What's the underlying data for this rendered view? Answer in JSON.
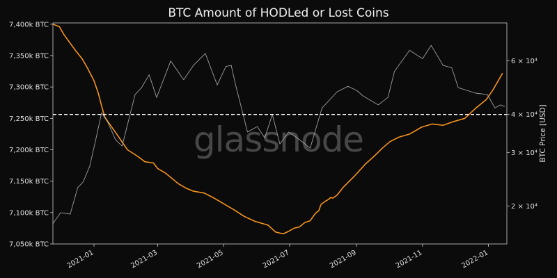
{
  "chart_data": {
    "type": "line",
    "title": "BTC Amount of HODLed or Lost Coins",
    "watermark": "glassnode",
    "x_tick_labels": [
      "2021-01",
      "2021-03",
      "2021-05",
      "2021-07",
      "2021-09",
      "2021-11",
      "2022-01"
    ],
    "xlim": [
      "2020-11-24",
      "2022-01-18"
    ],
    "left_axis": {
      "label": "",
      "tick_labels": [
        "7,400k BTC",
        "7,350k BTC",
        "7,300k BTC",
        "7,250k BTC",
        "7,200k BTC",
        "7,150k BTC",
        "7,100k BTC",
        "7,050k BTC"
      ],
      "tick_values": [
        7400,
        7350,
        7300,
        7250,
        7200,
        7150,
        7100,
        7050
      ],
      "ylim": [
        7050,
        7402
      ]
    },
    "right_axis": {
      "label": "BTC Price [USD]",
      "scale": "log",
      "ticks": [
        {
          "value": 20000,
          "label": "2 × 10⁴"
        },
        {
          "value": 30000,
          "label": "3 × 10⁴"
        },
        {
          "value": 40000,
          "label": "4 × 10⁴"
        },
        {
          "value": 60000,
          "label": "6 × 10⁴"
        }
      ],
      "ylim": [
        15000,
        80000
      ]
    },
    "reference_line": {
      "axis": "right",
      "value": 40000,
      "style": "dashed",
      "color": "#ffffff"
    },
    "grid": false,
    "series": [
      {
        "axis": "left",
        "color": "#f7931a",
        "x": [
          "2020-11-24",
          "2020-11-30",
          "2020-12-04",
          "2020-12-09",
          "2020-12-15",
          "2020-12-21",
          "2020-12-26",
          "2021-01-01",
          "2021-01-05",
          "2021-01-08",
          "2021-01-11",
          "2021-01-15",
          "2021-01-22",
          "2021-02-01",
          "2021-02-10",
          "2021-02-17",
          "2021-02-25",
          "2021-03-01",
          "2021-03-08",
          "2021-03-13",
          "2021-03-20",
          "2021-03-27",
          "2021-04-03",
          "2021-04-13",
          "2021-04-21",
          "2021-05-01",
          "2021-05-10",
          "2021-05-20",
          "2021-05-30",
          "2021-06-05",
          "2021-06-11",
          "2021-06-18",
          "2021-06-25",
          "2021-06-30",
          "2021-07-05",
          "2021-07-10",
          "2021-07-15",
          "2021-07-20",
          "2021-07-25",
          "2021-07-28",
          "2021-07-30",
          "2021-08-03",
          "2021-08-06",
          "2021-08-08",
          "2021-08-10",
          "2021-08-14",
          "2021-08-20",
          "2021-08-30",
          "2021-09-09",
          "2021-09-18",
          "2021-09-25",
          "2021-10-02",
          "2021-10-10",
          "2021-10-20",
          "2021-10-31",
          "2021-11-10",
          "2021-11-20",
          "2021-11-30",
          "2021-12-10",
          "2021-12-20",
          "2021-12-30",
          "2022-01-05",
          "2022-01-10",
          "2022-01-14"
        ],
        "y": [
          7400,
          7396,
          7384,
          7372,
          7358,
          7345,
          7330,
          7310,
          7290,
          7270,
          7252,
          7242,
          7225,
          7200,
          7190,
          7181,
          7179,
          7170,
          7163,
          7156,
          7146,
          7139,
          7134,
          7131,
          7124,
          7114,
          7105,
          7094,
          7086,
          7083,
          7080,
          7069,
          7066,
          7070,
          7075,
          7077,
          7084,
          7087,
          7099,
          7103,
          7113,
          7118,
          7121,
          7124,
          7123,
          7128,
          7141,
          7158,
          7177,
          7191,
          7203,
          7213,
          7220,
          7225,
          7236,
          7241,
          7239,
          7245,
          7250,
          7266,
          7280,
          7295,
          7310,
          7322
        ]
      },
      {
        "axis": "right",
        "color": "#a0a0a0",
        "x": [
          "2020-11-24",
          "2020-12-01",
          "2020-12-10",
          "2020-12-17",
          "2020-12-22",
          "2020-12-28",
          "2021-01-03",
          "2021-01-08",
          "2021-01-14",
          "2021-01-21",
          "2021-01-27",
          "2021-02-08",
          "2021-02-14",
          "2021-02-21",
          "2021-02-28",
          "2021-03-13",
          "2021-03-25",
          "2021-04-03",
          "2021-04-14",
          "2021-04-25",
          "2021-05-03",
          "2021-05-08",
          "2021-05-12",
          "2021-05-19",
          "2021-05-23",
          "2021-06-01",
          "2021-06-08",
          "2021-06-15",
          "2021-06-22",
          "2021-06-30",
          "2021-07-08",
          "2021-07-20",
          "2021-07-31",
          "2021-08-14",
          "2021-08-24",
          "2021-09-01",
          "2021-09-07",
          "2021-09-21",
          "2021-09-30",
          "2021-10-06",
          "2021-10-20",
          "2021-11-01",
          "2021-11-09",
          "2021-11-20",
          "2021-11-28",
          "2021-12-04",
          "2021-12-20",
          "2021-12-31",
          "2022-01-07",
          "2022-01-12",
          "2022-01-16"
        ],
        "y": [
          17500,
          19000,
          18800,
          23000,
          24000,
          27000,
          33500,
          40500,
          37500,
          33000,
          31500,
          46500,
          49000,
          54000,
          45500,
          60000,
          52000,
          58000,
          63500,
          50000,
          57500,
          58000,
          50000,
          40000,
          35000,
          36500,
          33500,
          40000,
          32000,
          35000,
          33500,
          31000,
          42000,
          47500,
          49500,
          48000,
          46000,
          43000,
          45500,
          55500,
          65000,
          61000,
          67500,
          58000,
          57000,
          49000,
          47000,
          46500,
          42000,
          43000,
          42500
        ]
      }
    ]
  }
}
